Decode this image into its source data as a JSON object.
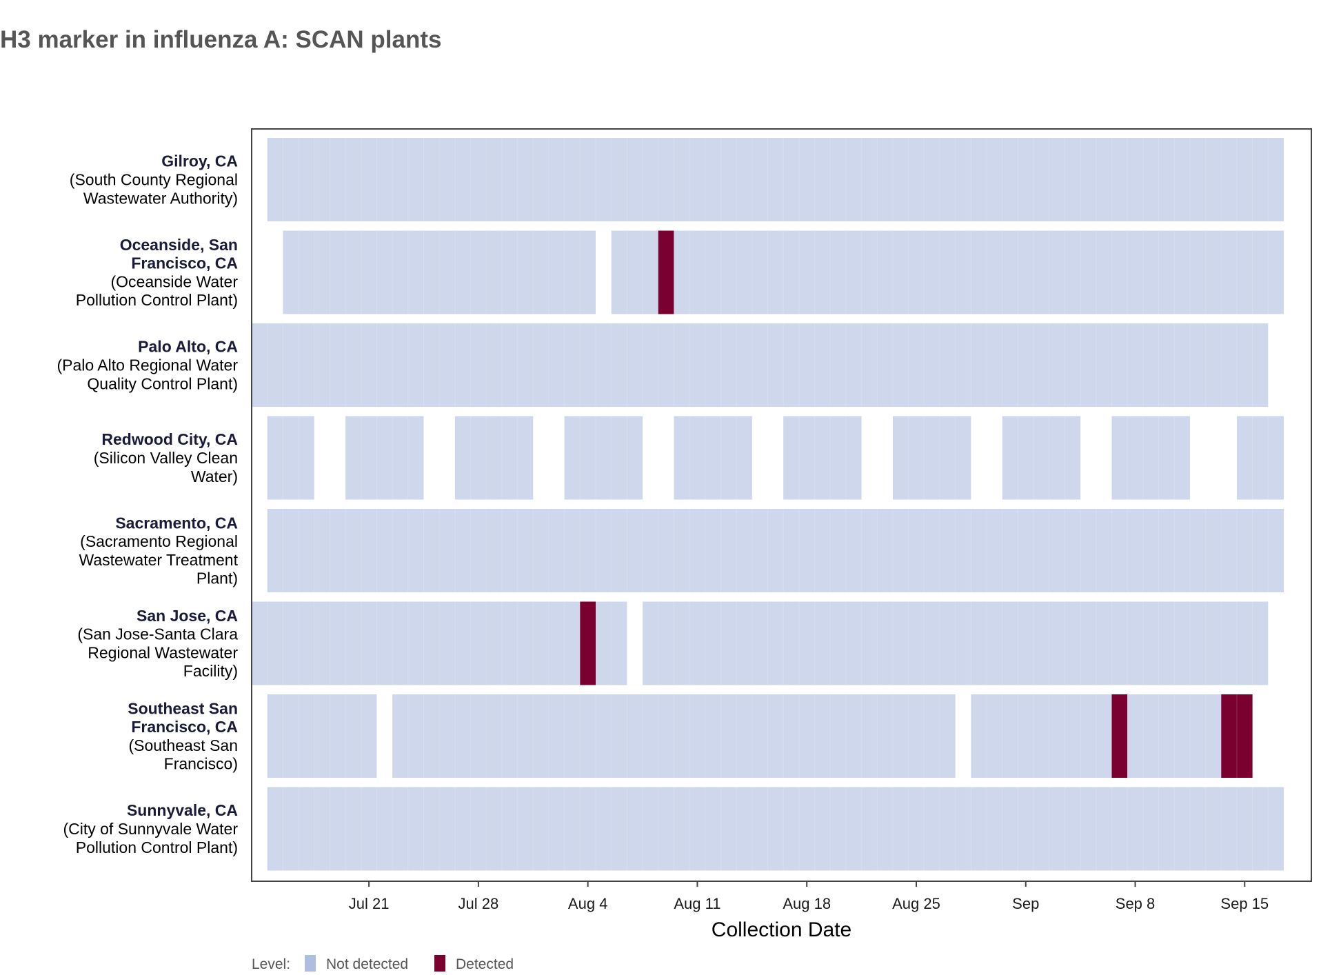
{
  "chart_data": {
    "type": "heatmap",
    "title": "H3 marker in influenza A: SCAN plants",
    "xlabel": "Collection Date",
    "x_start": "2024-07-14",
    "x_end": "2024-09-17",
    "x_ticks": [
      {
        "date": "2024-07-21",
        "label": "Jul 21"
      },
      {
        "date": "2024-07-28",
        "label": "Jul 28"
      },
      {
        "date": "2024-08-04",
        "label": "Aug 4"
      },
      {
        "date": "2024-08-11",
        "label": "Aug 11"
      },
      {
        "date": "2024-08-18",
        "label": "Aug 18"
      },
      {
        "date": "2024-08-25",
        "label": "Aug 25"
      },
      {
        "date": "2024-09-01",
        "label": "Sep"
      },
      {
        "date": "2024-09-08",
        "label": "Sep 8"
      },
      {
        "date": "2024-09-15",
        "label": "Sep 15"
      }
    ],
    "legend": {
      "title": "Level:",
      "position": "bottom-left",
      "items": [
        {
          "label": "Not detected",
          "color": "#aebde0"
        },
        {
          "label": "Detected",
          "color": "#7a0030"
        }
      ]
    },
    "colors": {
      "not_detected": "#cfd7ec",
      "detected": "#7a0030"
    },
    "sites": [
      {
        "name": "Gilroy, CA",
        "label_lines": [
          "(South County Regional",
          "Wastewater Authority)"
        ],
        "name_lines": [
          "Gilroy, CA"
        ],
        "segments": [
          {
            "start": "2024-07-15",
            "end": "2024-09-17",
            "level": "Not detected"
          }
        ]
      },
      {
        "name": "Oceanside, San Francisco, CA",
        "name_lines": [
          "Oceanside, San",
          "Francisco, CA"
        ],
        "label_lines": [
          "(Oceanside Water",
          "Pollution Control Plant)"
        ],
        "segments": [
          {
            "start": "2024-07-16",
            "end": "2024-08-04",
            "level": "Not detected"
          },
          {
            "start": "2024-08-06",
            "end": "2024-08-08",
            "level": "Not detected"
          },
          {
            "start": "2024-08-09",
            "end": "2024-08-09",
            "level": "Detected"
          },
          {
            "start": "2024-08-10",
            "end": "2024-09-17",
            "level": "Not detected"
          }
        ]
      },
      {
        "name": "Palo Alto, CA",
        "name_lines": [
          "Palo Alto, CA"
        ],
        "label_lines": [
          "(Palo Alto Regional Water",
          "Quality Control Plant)"
        ],
        "segments": [
          {
            "start": "2024-07-14",
            "end": "2024-09-16",
            "level": "Not detected"
          }
        ]
      },
      {
        "name": "Redwood City, CA",
        "name_lines": [
          "Redwood City, CA"
        ],
        "label_lines": [
          "(Silicon Valley Clean",
          "Water)"
        ],
        "segments": [
          {
            "start": "2024-07-15",
            "end": "2024-07-17",
            "level": "Not detected"
          },
          {
            "start": "2024-07-20",
            "end": "2024-07-24",
            "level": "Not detected"
          },
          {
            "start": "2024-07-27",
            "end": "2024-07-31",
            "level": "Not detected"
          },
          {
            "start": "2024-08-03",
            "end": "2024-08-07",
            "level": "Not detected"
          },
          {
            "start": "2024-08-10",
            "end": "2024-08-14",
            "level": "Not detected"
          },
          {
            "start": "2024-08-17",
            "end": "2024-08-21",
            "level": "Not detected"
          },
          {
            "start": "2024-08-24",
            "end": "2024-08-28",
            "level": "Not detected"
          },
          {
            "start": "2024-08-31",
            "end": "2024-09-04",
            "level": "Not detected"
          },
          {
            "start": "2024-09-07",
            "end": "2024-09-11",
            "level": "Not detected"
          },
          {
            "start": "2024-09-15",
            "end": "2024-09-17",
            "level": "Not detected"
          }
        ]
      },
      {
        "name": "Sacramento, CA",
        "name_lines": [
          "Sacramento, CA"
        ],
        "label_lines": [
          "(Sacramento Regional",
          "Wastewater Treatment",
          "Plant)"
        ],
        "segments": [
          {
            "start": "2024-07-15",
            "end": "2024-09-17",
            "level": "Not detected"
          }
        ]
      },
      {
        "name": "San Jose, CA",
        "name_lines": [
          "San Jose, CA"
        ],
        "label_lines": [
          "(San Jose-Santa Clara",
          "Regional Wastewater",
          "Facility)"
        ],
        "segments": [
          {
            "start": "2024-07-14",
            "end": "2024-08-03",
            "level": "Not detected"
          },
          {
            "start": "2024-08-04",
            "end": "2024-08-04",
            "level": "Detected"
          },
          {
            "start": "2024-08-05",
            "end": "2024-08-06",
            "level": "Not detected"
          },
          {
            "start": "2024-08-08",
            "end": "2024-09-16",
            "level": "Not detected"
          }
        ]
      },
      {
        "name": "Southeast San Francisco, CA",
        "name_lines": [
          "Southeast San",
          "Francisco, CA"
        ],
        "label_lines": [
          "(Southeast San",
          "Francisco)"
        ],
        "segments": [
          {
            "start": "2024-07-15",
            "end": "2024-07-21",
            "level": "Not detected"
          },
          {
            "start": "2024-07-23",
            "end": "2024-08-27",
            "level": "Not detected"
          },
          {
            "start": "2024-08-29",
            "end": "2024-09-06",
            "level": "Not detected"
          },
          {
            "start": "2024-09-07",
            "end": "2024-09-07",
            "level": "Detected"
          },
          {
            "start": "2024-09-08",
            "end": "2024-09-13",
            "level": "Not detected"
          },
          {
            "start": "2024-09-14",
            "end": "2024-09-15",
            "level": "Detected"
          }
        ]
      },
      {
        "name": "Sunnyvale, CA",
        "name_lines": [
          "Sunnyvale, CA"
        ],
        "label_lines": [
          "(City of Sunnyvale Water",
          "Pollution Control Plant)"
        ],
        "segments": [
          {
            "start": "2024-07-15",
            "end": "2024-09-17",
            "level": "Not detected"
          }
        ]
      }
    ]
  }
}
